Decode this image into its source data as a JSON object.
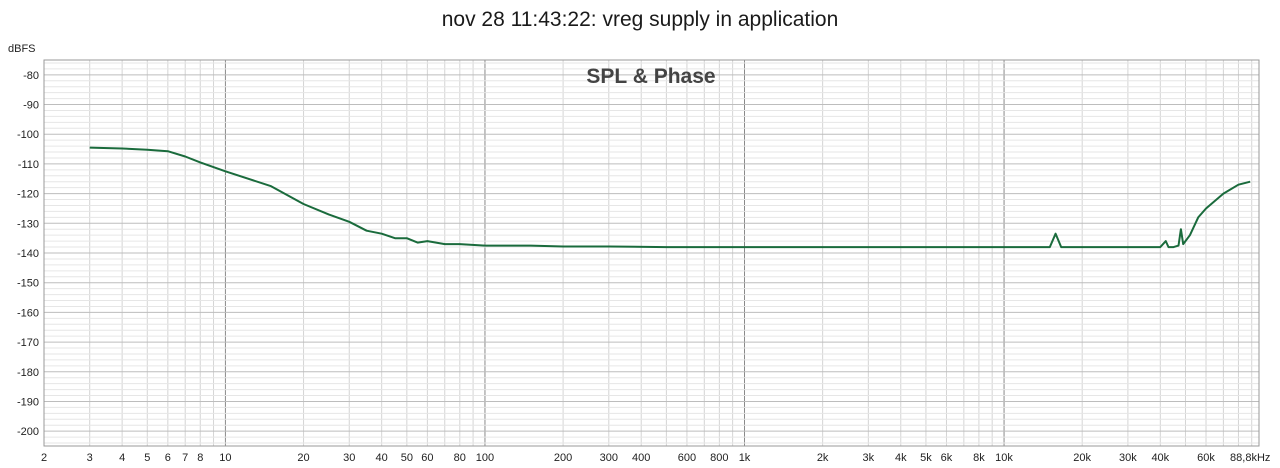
{
  "chart_data": {
    "type": "line",
    "title": "nov 28 11:43:22: vreg supply in application",
    "subtitle": "SPL & Phase",
    "ylabel": "dBFS",
    "xlabel": "",
    "x_scale": "log",
    "xlim": [
      2,
      96000
    ],
    "ylim": [
      -205,
      -75
    ],
    "grid": true,
    "legend": "none",
    "colors": {
      "series": "#1a6b3c",
      "grid_major": "#8a8a8a",
      "grid_minor": "#d4d4d4",
      "frame": "#999999"
    },
    "y_ticks": [
      -80,
      -90,
      -100,
      -110,
      -120,
      -130,
      -140,
      -150,
      -160,
      -170,
      -180,
      -190,
      -200
    ],
    "x_ticks": [
      {
        "value": 2,
        "label": "2"
      },
      {
        "value": 3,
        "label": "3"
      },
      {
        "value": 4,
        "label": "4"
      },
      {
        "value": 5,
        "label": "5"
      },
      {
        "value": 6,
        "label": "6"
      },
      {
        "value": 7,
        "label": "7"
      },
      {
        "value": 8,
        "label": "8"
      },
      {
        "value": 10,
        "label": "10"
      },
      {
        "value": 20,
        "label": "20"
      },
      {
        "value": 30,
        "label": "30"
      },
      {
        "value": 40,
        "label": "40"
      },
      {
        "value": 50,
        "label": "50"
      },
      {
        "value": 60,
        "label": "60"
      },
      {
        "value": 80,
        "label": "80"
      },
      {
        "value": 100,
        "label": "100"
      },
      {
        "value": 200,
        "label": "200"
      },
      {
        "value": 300,
        "label": "300"
      },
      {
        "value": 400,
        "label": "400"
      },
      {
        "value": 600,
        "label": "600"
      },
      {
        "value": 800,
        "label": "800"
      },
      {
        "value": 1000,
        "label": "1k"
      },
      {
        "value": 2000,
        "label": "2k"
      },
      {
        "value": 3000,
        "label": "3k"
      },
      {
        "value": 4000,
        "label": "4k"
      },
      {
        "value": 5000,
        "label": "5k"
      },
      {
        "value": 6000,
        "label": "6k"
      },
      {
        "value": 8000,
        "label": "8k"
      },
      {
        "value": 10000,
        "label": "10k"
      },
      {
        "value": 20000,
        "label": "20k"
      },
      {
        "value": 30000,
        "label": "30k"
      },
      {
        "value": 40000,
        "label": "40k"
      },
      {
        "value": 60000,
        "label": "60k"
      },
      {
        "value": 88800,
        "label": "88,8kHz"
      }
    ],
    "series": [
      {
        "values_xy": [
          [
            3,
            -104.5
          ],
          [
            4,
            -104.8
          ],
          [
            5,
            -105.2
          ],
          [
            6,
            -105.7
          ],
          [
            7,
            -107.5
          ],
          [
            8,
            -109.5
          ],
          [
            10,
            -112.5
          ],
          [
            15,
            -117.5
          ],
          [
            20,
            -123.5
          ],
          [
            25,
            -127
          ],
          [
            30,
            -129.5
          ],
          [
            35,
            -132.5
          ],
          [
            40,
            -133.5
          ],
          [
            45,
            -135
          ],
          [
            50,
            -135
          ],
          [
            55,
            -136.5
          ],
          [
            60,
            -136
          ],
          [
            70,
            -137
          ],
          [
            80,
            -137
          ],
          [
            100,
            -137.5
          ],
          [
            150,
            -137.5
          ],
          [
            200,
            -137.8
          ],
          [
            300,
            -137.8
          ],
          [
            500,
            -138
          ],
          [
            1000,
            -138
          ],
          [
            2000,
            -138
          ],
          [
            5000,
            -138
          ],
          [
            10000,
            -138
          ],
          [
            15000,
            -138
          ],
          [
            15800,
            -133.5
          ],
          [
            16600,
            -138
          ],
          [
            20000,
            -138
          ],
          [
            30000,
            -138
          ],
          [
            40000,
            -138
          ],
          [
            42000,
            -136
          ],
          [
            43000,
            -138
          ],
          [
            45000,
            -138
          ],
          [
            47000,
            -137.5
          ],
          [
            48000,
            -132
          ],
          [
            49000,
            -137
          ],
          [
            52000,
            -134
          ],
          [
            56000,
            -128
          ],
          [
            60000,
            -125
          ],
          [
            70000,
            -120
          ],
          [
            80000,
            -117
          ],
          [
            88800,
            -116
          ]
        ]
      }
    ]
  }
}
